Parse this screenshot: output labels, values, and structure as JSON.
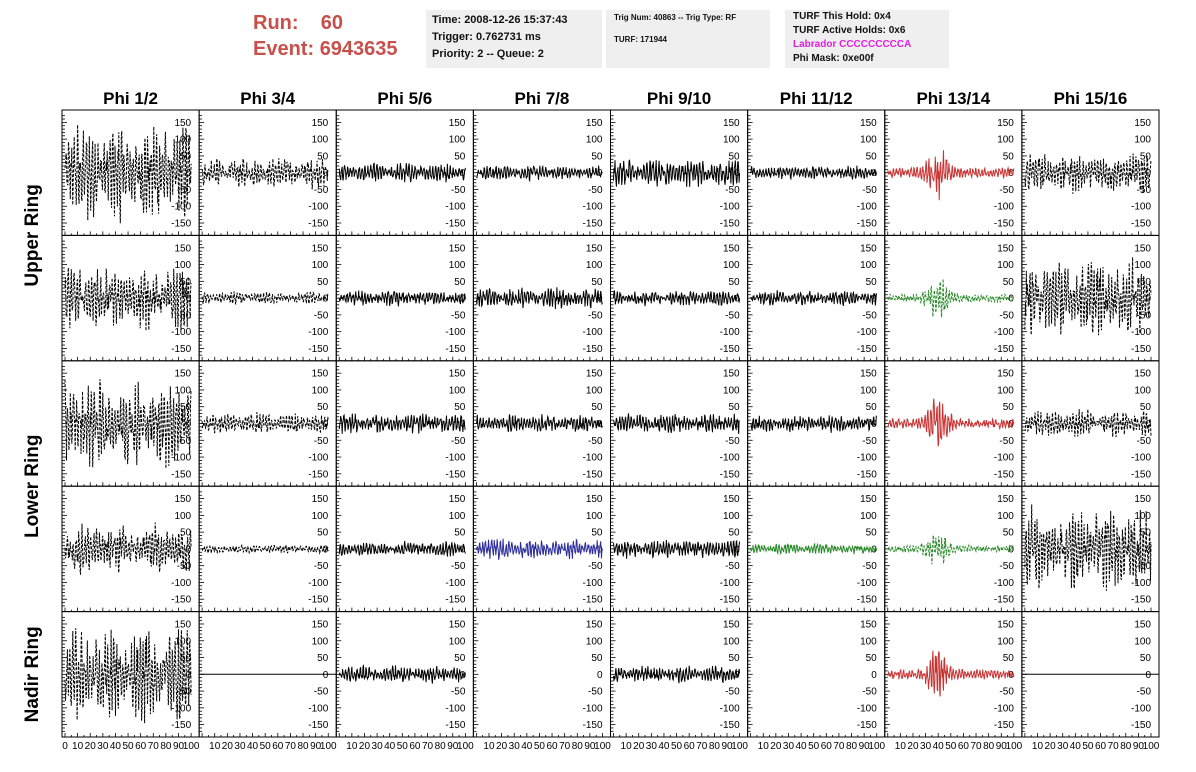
{
  "header": {
    "run_label": "Run:",
    "run_value": "60",
    "event_label": "Event:",
    "event_value": "6943635"
  },
  "info_box_1": {
    "time": "Time: 2008-12-26 15:37:43",
    "trigger": "Trigger: 0.762731 ms",
    "priority": "Priority: 2 -- Queue: 2"
  },
  "info_box_2": {
    "trig": "Trig Num: 40863 -- Trig Type: RF",
    "turf": "TURF: 171944"
  },
  "info_box_3": {
    "hold": "TURF This Hold: 0x4",
    "active": "TURF Active Holds: 0x6",
    "labrador": "Labrador CCCCCCCCCA",
    "phimask": "Phi Mask: 0xe00f"
  },
  "chart_data": {
    "type": "line",
    "columns": [
      "Phi 1/2",
      "Phi 3/4",
      "Phi 5/6",
      "Phi 7/8",
      "Phi 9/10",
      "Phi 11/12",
      "Phi 13/14",
      "Phi 15/16"
    ],
    "rows": [
      "Upper Ring",
      "Upper Ring",
      "Lower Ring",
      "Lower Ring",
      "Nadir Ring"
    ],
    "row_labels": [
      "Upper Ring",
      "Lower Ring",
      "Nadir Ring"
    ],
    "ylim": [
      -175,
      175
    ],
    "xlim": [
      0,
      100
    ],
    "y_ticks": [
      -150,
      -100,
      -50,
      0,
      50,
      100,
      150
    ],
    "x_ticks": [
      0,
      10,
      20,
      30,
      40,
      50,
      60,
      70,
      80,
      90,
      100
    ],
    "colors": {
      "black": "#000000",
      "red": "#c83232",
      "green": "#2a8a2a",
      "blue": "#2c2c9a"
    },
    "panels": [
      [
        {
          "amp": 145,
          "style": "dashed",
          "color": "black"
        },
        {
          "amp": 45,
          "style": "dashed",
          "color": "black"
        },
        {
          "amp": 28,
          "style": "solid",
          "color": "black"
        },
        {
          "amp": 22,
          "style": "solid",
          "color": "black"
        },
        {
          "amp": 40,
          "style": "solid",
          "color": "black"
        },
        {
          "amp": 20,
          "style": "solid",
          "color": "black"
        },
        {
          "amp": 55,
          "style": "solid",
          "color": "red",
          "burst": true
        },
        {
          "amp": 60,
          "style": "dashed",
          "color": "black"
        }
      ],
      [
        {
          "amp": 90,
          "style": "dashed",
          "color": "black"
        },
        {
          "amp": 18,
          "style": "dashed",
          "color": "black"
        },
        {
          "amp": 22,
          "style": "solid",
          "color": "black"
        },
        {
          "amp": 30,
          "style": "solid",
          "color": "black"
        },
        {
          "amp": 22,
          "style": "solid",
          "color": "black"
        },
        {
          "amp": 22,
          "style": "solid",
          "color": "black"
        },
        {
          "amp": 45,
          "style": "dashed",
          "color": "green",
          "burst": true
        },
        {
          "amp": 110,
          "style": "dashed",
          "color": "black"
        }
      ],
      [
        {
          "amp": 125,
          "style": "dashed",
          "color": "black"
        },
        {
          "amp": 30,
          "style": "dashed",
          "color": "black"
        },
        {
          "amp": 30,
          "style": "solid",
          "color": "black"
        },
        {
          "amp": 25,
          "style": "solid",
          "color": "black"
        },
        {
          "amp": 30,
          "style": "solid",
          "color": "black"
        },
        {
          "amp": 25,
          "style": "solid",
          "color": "black"
        },
        {
          "amp": 55,
          "style": "solid",
          "color": "red",
          "burst": true
        },
        {
          "amp": 40,
          "style": "dashed",
          "color": "black"
        }
      ],
      [
        {
          "amp": 70,
          "style": "dashed",
          "color": "black"
        },
        {
          "amp": 12,
          "style": "dashed",
          "color": "black"
        },
        {
          "amp": 22,
          "style": "solid",
          "color": "black"
        },
        {
          "amp": 30,
          "style": "solid",
          "color": "blue"
        },
        {
          "amp": 28,
          "style": "solid",
          "color": "black"
        },
        {
          "amp": 15,
          "style": "solid",
          "color": "green"
        },
        {
          "amp": 40,
          "style": "dashed",
          "color": "green",
          "burst": true
        },
        {
          "amp": 120,
          "style": "dashed",
          "color": "black"
        }
      ],
      [
        {
          "amp": 130,
          "style": "dashed",
          "color": "black"
        },
        {
          "amp": 0,
          "style": "flat",
          "color": "black"
        },
        {
          "amp": 25,
          "style": "solid",
          "color": "black"
        },
        {
          "amp": 0,
          "style": "none",
          "color": "black"
        },
        {
          "amp": 25,
          "style": "solid",
          "color": "black"
        },
        {
          "amp": 0,
          "style": "none",
          "color": "black"
        },
        {
          "amp": 55,
          "style": "solid",
          "color": "red",
          "burst": true
        },
        {
          "amp": 0,
          "style": "flat",
          "color": "black"
        }
      ]
    ]
  }
}
